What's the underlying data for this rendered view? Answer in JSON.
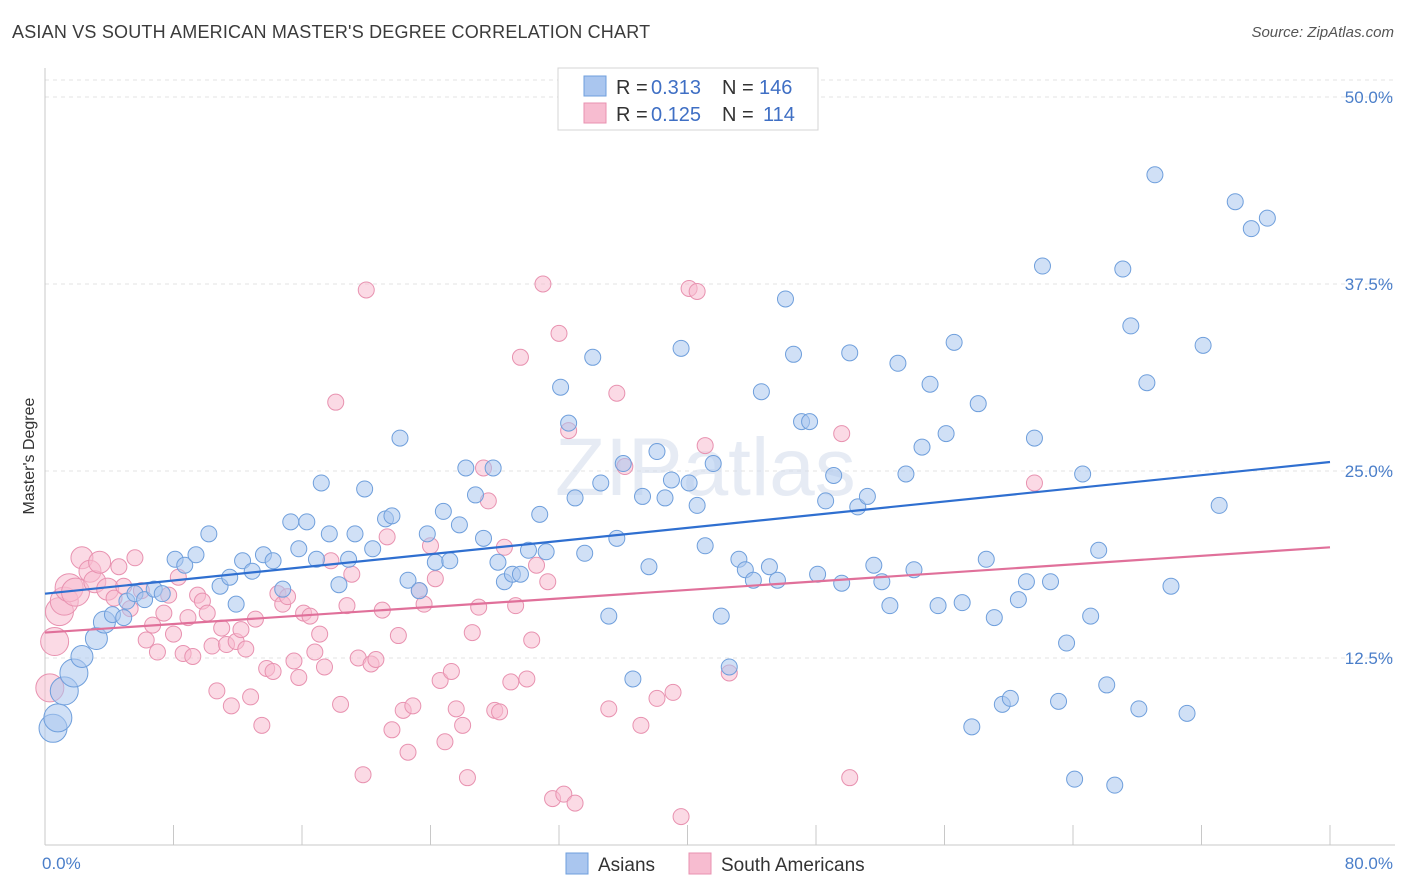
{
  "header": {
    "title": "ASIAN VS SOUTH AMERICAN MASTER'S DEGREE CORRELATION CHART",
    "source": "Source: ZipAtlas.com"
  },
  "watermark": "ZIPatlas",
  "legend_top": [
    {
      "r_label": "R = ",
      "r_value": "0.313",
      "n_label": "N = ",
      "n_value": "146"
    },
    {
      "r_label": "R = ",
      "r_value": "0.125",
      "n_label": "N = ",
      "n_value": "114"
    }
  ],
  "legend_bottom": [
    "Asians",
    "South Americans"
  ],
  "colors": {
    "asians_fill": "#aac6ef",
    "asians_stroke": "#6f9fdc",
    "asians_line": "#2f6fd0",
    "south_fill": "#f7bcd0",
    "south_stroke": "#e892b0",
    "south_line": "#e0709a",
    "tick_text": "#4a7ec9",
    "grid": "#dddddd"
  },
  "chart_data": {
    "type": "scatter",
    "title": "ASIAN VS SOUTH AMERICAN MASTER'S DEGREE CORRELATION CHART",
    "xlabel": "",
    "ylabel": "Master's Degree",
    "xlim": [
      0,
      80
    ],
    "ylim": [
      0,
      50
    ],
    "x_tick_labels": [
      "0.0%",
      "80.0%"
    ],
    "y_ticks": [
      12.5,
      25.0,
      37.5,
      50.0
    ],
    "y_tick_labels": [
      "12.5%",
      "25.0%",
      "37.5%",
      "50.0%"
    ],
    "grid": true,
    "legend_position": "top-center",
    "series": [
      {
        "name": "Asians",
        "r": 0.313,
        "n": 146,
        "trend": {
          "x0": 0,
          "y0": 16.8,
          "x1": 80,
          "y1": 25.6
        },
        "points": [
          [
            0.5,
            7.8
          ],
          [
            0.8,
            8.5
          ],
          [
            1.2,
            10.3
          ],
          [
            1.8,
            11.5
          ],
          [
            2.3,
            12.6
          ],
          [
            3.2,
            13.8
          ],
          [
            3.7,
            14.9
          ],
          [
            4.2,
            15.4
          ],
          [
            4.9,
            15.2
          ],
          [
            5.1,
            16.3
          ],
          [
            5.6,
            16.8
          ],
          [
            6.2,
            16.4
          ],
          [
            6.8,
            17.1
          ],
          [
            7.3,
            16.8
          ],
          [
            8.1,
            19.1
          ],
          [
            8.7,
            18.7
          ],
          [
            9.4,
            19.4
          ],
          [
            10.2,
            20.8
          ],
          [
            10.9,
            17.3
          ],
          [
            11.5,
            17.9
          ],
          [
            11.9,
            16.1
          ],
          [
            12.3,
            19.0
          ],
          [
            12.9,
            18.3
          ],
          [
            13.6,
            19.4
          ],
          [
            14.2,
            19.0
          ],
          [
            14.8,
            17.1
          ],
          [
            15.3,
            21.6
          ],
          [
            15.8,
            19.8
          ],
          [
            16.3,
            21.6
          ],
          [
            16.9,
            19.1
          ],
          [
            17.2,
            24.2
          ],
          [
            17.7,
            20.8
          ],
          [
            18.3,
            17.4
          ],
          [
            18.9,
            19.1
          ],
          [
            19.3,
            20.8
          ],
          [
            19.9,
            23.8
          ],
          [
            20.4,
            19.8
          ],
          [
            21.2,
            21.8
          ],
          [
            21.6,
            22.0
          ],
          [
            22.1,
            27.2
          ],
          [
            22.6,
            17.7
          ],
          [
            23.3,
            17.0
          ],
          [
            23.8,
            20.8
          ],
          [
            24.3,
            18.9
          ],
          [
            24.8,
            22.3
          ],
          [
            25.2,
            19.0
          ],
          [
            25.8,
            21.4
          ],
          [
            26.2,
            25.2
          ],
          [
            26.8,
            23.4
          ],
          [
            27.3,
            20.5
          ],
          [
            27.9,
            25.2
          ],
          [
            28.2,
            18.9
          ],
          [
            28.6,
            17.6
          ],
          [
            29.1,
            18.1
          ],
          [
            29.6,
            18.1
          ],
          [
            30.1,
            19.7
          ],
          [
            30.8,
            22.1
          ],
          [
            31.2,
            19.6
          ],
          [
            32.1,
            30.6
          ],
          [
            32.6,
            28.2
          ],
          [
            33.0,
            23.2
          ],
          [
            33.6,
            19.5
          ],
          [
            34.1,
            32.6
          ],
          [
            34.6,
            24.2
          ],
          [
            35.1,
            15.3
          ],
          [
            35.6,
            20.5
          ],
          [
            36.0,
            25.5
          ],
          [
            36.6,
            11.1
          ],
          [
            37.2,
            23.3
          ],
          [
            37.6,
            18.6
          ],
          [
            38.1,
            26.3
          ],
          [
            38.6,
            23.2
          ],
          [
            39.0,
            24.4
          ],
          [
            39.6,
            33.2
          ],
          [
            40.1,
            24.2
          ],
          [
            40.6,
            22.7
          ],
          [
            41.1,
            20.0
          ],
          [
            41.6,
            25.5
          ],
          [
            42.1,
            15.3
          ],
          [
            42.6,
            11.9
          ],
          [
            43.2,
            19.1
          ],
          [
            43.6,
            18.4
          ],
          [
            44.1,
            17.7
          ],
          [
            44.6,
            30.3
          ],
          [
            45.1,
            18.6
          ],
          [
            45.6,
            17.7
          ],
          [
            46.1,
            36.5
          ],
          [
            46.6,
            32.8
          ],
          [
            47.1,
            28.3
          ],
          [
            47.6,
            28.3
          ],
          [
            48.1,
            18.1
          ],
          [
            48.6,
            23.0
          ],
          [
            49.1,
            24.7
          ],
          [
            49.6,
            17.5
          ],
          [
            50.1,
            32.9
          ],
          [
            50.6,
            22.6
          ],
          [
            51.2,
            23.3
          ],
          [
            51.6,
            18.7
          ],
          [
            52.1,
            17.6
          ],
          [
            52.6,
            16.0
          ],
          [
            53.1,
            32.2
          ],
          [
            53.6,
            24.8
          ],
          [
            54.1,
            18.4
          ],
          [
            54.6,
            26.6
          ],
          [
            55.1,
            30.8
          ],
          [
            55.6,
            16.0
          ],
          [
            56.1,
            27.5
          ],
          [
            56.6,
            33.6
          ],
          [
            57.1,
            16.2
          ],
          [
            57.7,
            7.9
          ],
          [
            58.1,
            29.5
          ],
          [
            58.6,
            19.1
          ],
          [
            59.1,
            15.2
          ],
          [
            59.6,
            9.4
          ],
          [
            60.1,
            9.8
          ],
          [
            60.6,
            16.4
          ],
          [
            61.1,
            17.6
          ],
          [
            61.6,
            27.2
          ],
          [
            62.1,
            38.7
          ],
          [
            62.6,
            17.6
          ],
          [
            63.1,
            9.6
          ],
          [
            63.6,
            13.5
          ],
          [
            64.1,
            4.4
          ],
          [
            64.6,
            24.8
          ],
          [
            65.1,
            15.3
          ],
          [
            65.6,
            19.7
          ],
          [
            66.1,
            10.7
          ],
          [
            66.6,
            4.0
          ],
          [
            67.1,
            38.5
          ],
          [
            67.6,
            34.7
          ],
          [
            68.1,
            9.1
          ],
          [
            68.6,
            30.9
          ],
          [
            69.1,
            44.8
          ],
          [
            70.1,
            17.3
          ],
          [
            71.1,
            8.8
          ],
          [
            72.1,
            33.4
          ],
          [
            73.1,
            22.7
          ],
          [
            74.1,
            43.0
          ],
          [
            75.1,
            41.2
          ],
          [
            76.1,
            41.9
          ]
        ]
      },
      {
        "name": "South Americans",
        "r": 0.125,
        "n": 114,
        "trend": {
          "x0": 0,
          "y0": 14.2,
          "x1": 80,
          "y1": 19.9
        },
        "points": [
          [
            0.3,
            10.5
          ],
          [
            0.6,
            13.6
          ],
          [
            0.9,
            15.6
          ],
          [
            1.2,
            16.3
          ],
          [
            1.5,
            17.2
          ],
          [
            1.9,
            16.9
          ],
          [
            2.3,
            19.2
          ],
          [
            2.8,
            18.3
          ],
          [
            3.1,
            17.6
          ],
          [
            3.4,
            18.9
          ],
          [
            3.9,
            17.1
          ],
          [
            4.3,
            16.5
          ],
          [
            4.6,
            18.6
          ],
          [
            4.9,
            17.3
          ],
          [
            5.3,
            15.8
          ],
          [
            5.6,
            19.2
          ],
          [
            6.0,
            17.0
          ],
          [
            6.3,
            13.7
          ],
          [
            6.7,
            14.7
          ],
          [
            7.0,
            12.9
          ],
          [
            7.4,
            15.5
          ],
          [
            7.7,
            16.7
          ],
          [
            8.0,
            14.1
          ],
          [
            8.3,
            17.9
          ],
          [
            8.6,
            12.8
          ],
          [
            8.9,
            15.2
          ],
          [
            9.2,
            12.6
          ],
          [
            9.5,
            16.7
          ],
          [
            9.8,
            16.3
          ],
          [
            10.1,
            15.5
          ],
          [
            10.4,
            13.3
          ],
          [
            10.7,
            10.3
          ],
          [
            11.0,
            14.5
          ],
          [
            11.3,
            13.4
          ],
          [
            11.6,
            9.3
          ],
          [
            11.9,
            13.6
          ],
          [
            12.2,
            14.4
          ],
          [
            12.5,
            13.1
          ],
          [
            12.8,
            9.9
          ],
          [
            13.1,
            15.1
          ],
          [
            13.5,
            8.0
          ],
          [
            13.8,
            11.8
          ],
          [
            14.2,
            11.6
          ],
          [
            14.5,
            16.8
          ],
          [
            14.8,
            16.1
          ],
          [
            15.1,
            16.6
          ],
          [
            15.5,
            12.3
          ],
          [
            15.8,
            11.2
          ],
          [
            16.1,
            15.5
          ],
          [
            16.5,
            15.3
          ],
          [
            16.8,
            12.9
          ],
          [
            17.1,
            14.1
          ],
          [
            17.4,
            11.9
          ],
          [
            17.8,
            19.0
          ],
          [
            18.1,
            29.6
          ],
          [
            18.4,
            9.4
          ],
          [
            18.8,
            16.0
          ],
          [
            19.1,
            18.1
          ],
          [
            19.5,
            12.5
          ],
          [
            19.8,
            4.7
          ],
          [
            20.0,
            37.1
          ],
          [
            20.3,
            12.1
          ],
          [
            20.6,
            12.4
          ],
          [
            21.0,
            15.7
          ],
          [
            21.3,
            20.6
          ],
          [
            21.6,
            7.7
          ],
          [
            22.0,
            14.0
          ],
          [
            22.3,
            9.0
          ],
          [
            22.6,
            6.2
          ],
          [
            22.9,
            9.3
          ],
          [
            23.3,
            17.0
          ],
          [
            23.6,
            16.1
          ],
          [
            24.0,
            20.0
          ],
          [
            24.3,
            17.8
          ],
          [
            24.6,
            11.0
          ],
          [
            24.9,
            6.9
          ],
          [
            25.3,
            11.6
          ],
          [
            25.6,
            9.1
          ],
          [
            26.0,
            8.0
          ],
          [
            26.3,
            4.5
          ],
          [
            26.6,
            14.2
          ],
          [
            27.0,
            15.9
          ],
          [
            27.3,
            25.2
          ],
          [
            27.6,
            23.0
          ],
          [
            28.0,
            9.0
          ],
          [
            28.3,
            8.9
          ],
          [
            28.6,
            19.9
          ],
          [
            29.0,
            10.9
          ],
          [
            29.3,
            16.0
          ],
          [
            29.6,
            32.6
          ],
          [
            30.0,
            11.1
          ],
          [
            30.3,
            13.7
          ],
          [
            30.6,
            18.7
          ],
          [
            31.0,
            37.5
          ],
          [
            31.3,
            17.6
          ],
          [
            31.6,
            3.1
          ],
          [
            32.0,
            34.2
          ],
          [
            32.3,
            3.4
          ],
          [
            32.6,
            27.7
          ],
          [
            33.0,
            2.8
          ],
          [
            35.1,
            9.1
          ],
          [
            35.6,
            30.2
          ],
          [
            36.1,
            25.3
          ],
          [
            37.1,
            8.0
          ],
          [
            38.1,
            9.8
          ],
          [
            39.1,
            10.2
          ],
          [
            39.6,
            1.9
          ],
          [
            40.1,
            37.2
          ],
          [
            40.6,
            37.0
          ],
          [
            41.1,
            26.7
          ],
          [
            42.6,
            11.5
          ],
          [
            49.6,
            27.5
          ],
          [
            50.1,
            4.5
          ],
          [
            61.6,
            24.2
          ]
        ]
      }
    ]
  }
}
